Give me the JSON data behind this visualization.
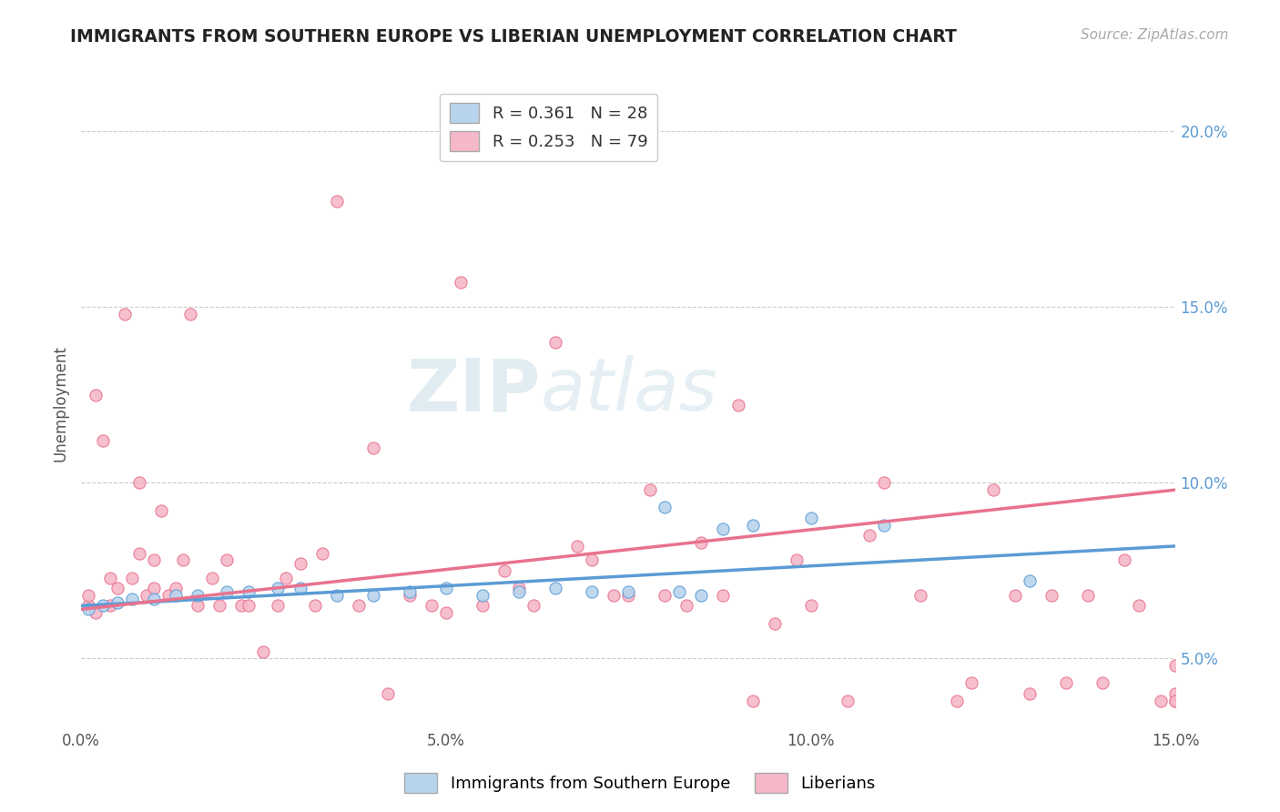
{
  "title": "IMMIGRANTS FROM SOUTHERN EUROPE VS LIBERIAN UNEMPLOYMENT CORRELATION CHART",
  "source_text": "Source: ZipAtlas.com",
  "ylabel": "Unemployment",
  "xlim": [
    0.0,
    0.15
  ],
  "ylim": [
    0.03,
    0.215
  ],
  "xticks": [
    0.0,
    0.05,
    0.1,
    0.15
  ],
  "xtick_labels": [
    "0.0%",
    "5.0%",
    "10.0%",
    "15.0%"
  ],
  "yticks_right": [
    0.05,
    0.1,
    0.15,
    0.2
  ],
  "ytick_labels_right": [
    "5.0%",
    "10.0%",
    "15.0%",
    "20.0%"
  ],
  "watermark_part1": "ZIP",
  "watermark_part2": "atlas",
  "blue_color": "#b8d4ed",
  "pink_color": "#f5b8c8",
  "blue_line_color": "#5b9bd5",
  "pink_line_color": "#e8728e",
  "blue_R": 0.361,
  "blue_N": 28,
  "pink_R": 0.253,
  "pink_N": 79,
  "legend_label_blue": "Immigrants from Southern Europe",
  "legend_label_pink": "Liberians",
  "blue_scatter_x": [
    0.001,
    0.003,
    0.005,
    0.007,
    0.01,
    0.013,
    0.016,
    0.02,
    0.023,
    0.027,
    0.03,
    0.035,
    0.04,
    0.045,
    0.05,
    0.055,
    0.06,
    0.065,
    0.07,
    0.075,
    0.08,
    0.082,
    0.085,
    0.088,
    0.092,
    0.1,
    0.11,
    0.13
  ],
  "blue_scatter_y": [
    0.064,
    0.065,
    0.066,
    0.067,
    0.067,
    0.068,
    0.068,
    0.069,
    0.069,
    0.07,
    0.07,
    0.068,
    0.068,
    0.069,
    0.07,
    0.068,
    0.069,
    0.07,
    0.069,
    0.069,
    0.093,
    0.069,
    0.068,
    0.087,
    0.088,
    0.09,
    0.088,
    0.072
  ],
  "pink_scatter_x": [
    0.001,
    0.001,
    0.002,
    0.002,
    0.003,
    0.004,
    0.004,
    0.005,
    0.006,
    0.007,
    0.008,
    0.008,
    0.009,
    0.01,
    0.01,
    0.011,
    0.012,
    0.013,
    0.014,
    0.015,
    0.016,
    0.018,
    0.019,
    0.02,
    0.022,
    0.023,
    0.025,
    0.027,
    0.028,
    0.03,
    0.032,
    0.033,
    0.035,
    0.038,
    0.04,
    0.042,
    0.045,
    0.048,
    0.05,
    0.052,
    0.055,
    0.058,
    0.06,
    0.062,
    0.065,
    0.068,
    0.07,
    0.073,
    0.075,
    0.078,
    0.08,
    0.083,
    0.085,
    0.088,
    0.09,
    0.092,
    0.095,
    0.098,
    0.1,
    0.105,
    0.108,
    0.11,
    0.115,
    0.12,
    0.122,
    0.125,
    0.128,
    0.13,
    0.133,
    0.135,
    0.138,
    0.14,
    0.143,
    0.145,
    0.148,
    0.15,
    0.15,
    0.15,
    0.15
  ],
  "pink_scatter_y": [
    0.065,
    0.068,
    0.063,
    0.125,
    0.112,
    0.073,
    0.065,
    0.07,
    0.148,
    0.073,
    0.08,
    0.1,
    0.068,
    0.07,
    0.078,
    0.092,
    0.068,
    0.07,
    0.078,
    0.148,
    0.065,
    0.073,
    0.065,
    0.078,
    0.065,
    0.065,
    0.052,
    0.065,
    0.073,
    0.077,
    0.065,
    0.08,
    0.18,
    0.065,
    0.11,
    0.04,
    0.068,
    0.065,
    0.063,
    0.157,
    0.065,
    0.075,
    0.07,
    0.065,
    0.14,
    0.082,
    0.078,
    0.068,
    0.068,
    0.098,
    0.068,
    0.065,
    0.083,
    0.068,
    0.122,
    0.038,
    0.06,
    0.078,
    0.065,
    0.038,
    0.085,
    0.1,
    0.068,
    0.038,
    0.043,
    0.098,
    0.068,
    0.04,
    0.068,
    0.043,
    0.068,
    0.043,
    0.078,
    0.065,
    0.038,
    0.038,
    0.048,
    0.04,
    0.038
  ],
  "blue_trend_x": [
    0.0,
    0.15
  ],
  "blue_trend_y": [
    0.065,
    0.082
  ],
  "pink_trend_x": [
    0.0,
    0.15
  ],
  "pink_trend_y": [
    0.064,
    0.098
  ]
}
